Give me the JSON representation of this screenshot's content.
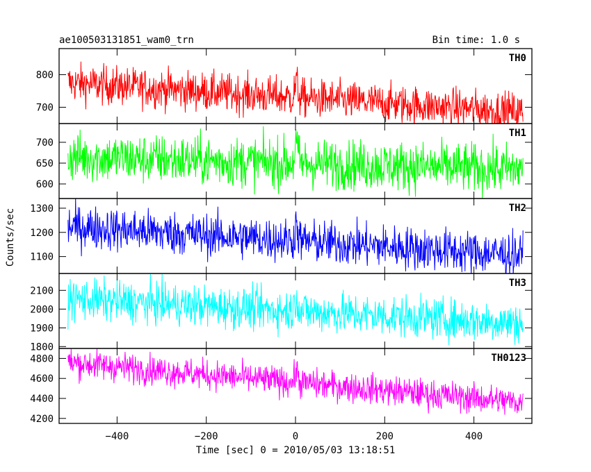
{
  "header": {
    "title": "ae100503131851_wam0_trn",
    "bin_time": "Bin time: 1.0 s"
  },
  "chart_data": {
    "type": "line",
    "ylabel": "Counts/sec",
    "xlabel": "Time [sec] 0 = 2010/05/03 13:18:51",
    "xlim": [
      -530,
      530
    ],
    "x_range": [
      -510,
      510
    ],
    "x_ticks": [
      -400,
      -200,
      0,
      200,
      400
    ],
    "x_tick_labels": [
      "−400",
      "−200",
      "0",
      "200",
      "400"
    ],
    "panels": [
      {
        "name": "TH0",
        "color": "#ff0000",
        "ylim": [
          650,
          880
        ],
        "y_ticks": [
          700,
          800
        ],
        "y_tick_labels": [
          "700",
          "800"
        ],
        "start_mean": 775,
        "end_mean": 685,
        "noise": 30
      },
      {
        "name": "TH1",
        "color": "#00ff00",
        "ylim": [
          565,
          745
        ],
        "y_ticks": [
          600,
          650,
          700
        ],
        "y_tick_labels": [
          "600",
          "650",
          "700"
        ],
        "start_mean": 665,
        "end_mean": 635,
        "noise": 30
      },
      {
        "name": "TH2",
        "color": "#0000ff",
        "ylim": [
          1030,
          1340
        ],
        "y_ticks": [
          1100,
          1200,
          1300
        ],
        "y_tick_labels": [
          "1100",
          "1200",
          "1300"
        ],
        "start_mean": 1225,
        "end_mean": 1105,
        "noise": 45
      },
      {
        "name": "TH3",
        "color": "#00ffff",
        "ylim": [
          1790,
          2190
        ],
        "y_ticks": [
          1800,
          1900,
          2000,
          2100
        ],
        "y_tick_labels": [
          "1800",
          "1900",
          "2000",
          "2100"
        ],
        "start_mean": 2055,
        "end_mean": 1925,
        "noise": 55
      },
      {
        "name": "TH0123",
        "color": "#ff00ff",
        "ylim": [
          4150,
          4900
        ],
        "y_ticks": [
          4200,
          4400,
          4600,
          4800
        ],
        "y_tick_labels": [
          "4200",
          "4400",
          "4600",
          "4800"
        ],
        "start_mean": 4760,
        "end_mean": 4360,
        "noise": 75
      }
    ]
  }
}
